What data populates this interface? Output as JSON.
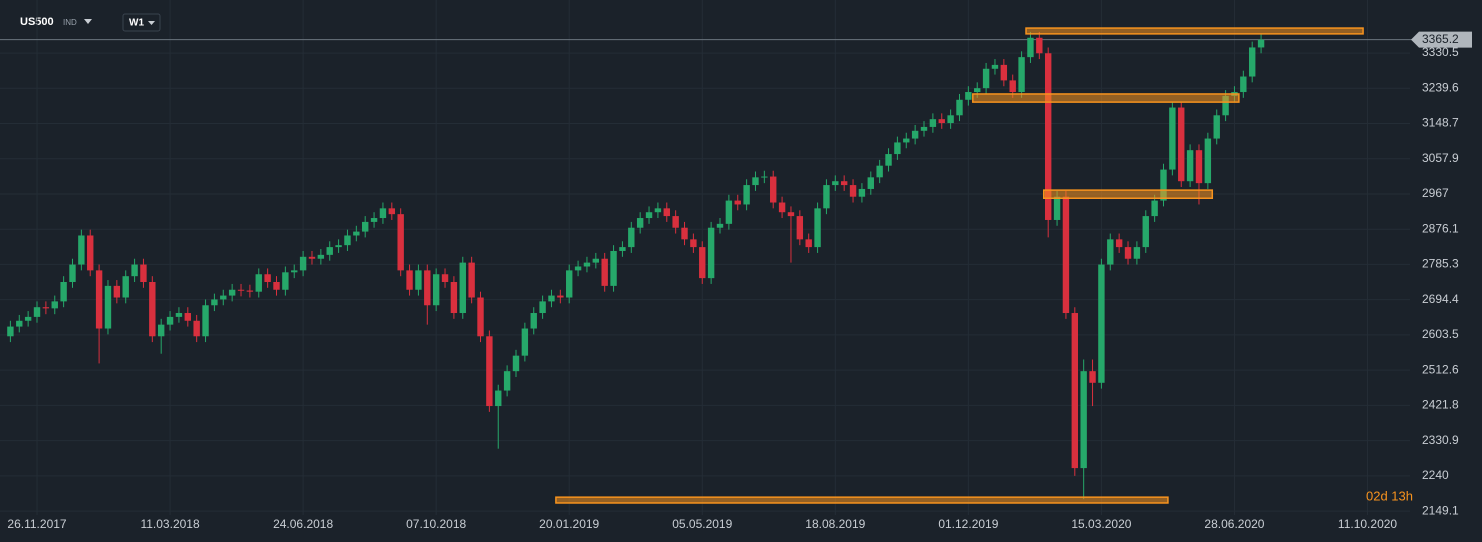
{
  "header": {
    "symbol": "US500",
    "instrument_type": "IND",
    "timeframe": "W1"
  },
  "chart_data": {
    "type": "candlestick",
    "categories": [
      null,
      null,
      null,
      "26.11.2017",
      null,
      null,
      null,
      null,
      null,
      null,
      null,
      null,
      null,
      null,
      null,
      null,
      null,
      null,
      "11.03.2018",
      null,
      null,
      null,
      null,
      null,
      null,
      null,
      null,
      null,
      null,
      null,
      null,
      null,
      null,
      "24.06.2018",
      null,
      null,
      null,
      null,
      null,
      null,
      null,
      null,
      null,
      null,
      null,
      null,
      null,
      null,
      "07.10.2018",
      null,
      null,
      null,
      null,
      null,
      null,
      null,
      null,
      null,
      null,
      null,
      null,
      null,
      null,
      "20.01.2019",
      null,
      null,
      null,
      null,
      null,
      null,
      null,
      null,
      null,
      null,
      null,
      null,
      null,
      null,
      "05.05.2019",
      null,
      null,
      null,
      null,
      null,
      null,
      null,
      null,
      null,
      null,
      null,
      null,
      null,
      null,
      "18.08.2019",
      null,
      null,
      null,
      null,
      null,
      null,
      null,
      null,
      null,
      null,
      null,
      null,
      null,
      null,
      "01.12.2019",
      null,
      null,
      null,
      null,
      null,
      null,
      null,
      null,
      null,
      null,
      null,
      null,
      null,
      null,
      "15.03.2020",
      null,
      null,
      null,
      null,
      null,
      null,
      null,
      null,
      null,
      null,
      null,
      null,
      null,
      null,
      "28.06.2020",
      null,
      null,
      null,
      null,
      null,
      null,
      null,
      null,
      null,
      null,
      null,
      null,
      null,
      null,
      "11.10.2020",
      null,
      null
    ],
    "open": [
      2600,
      2625,
      2640,
      2650,
      2675,
      2672,
      2690,
      2740,
      2785,
      2860,
      2770,
      2620,
      2730,
      2700,
      2755,
      2785,
      2740,
      2600,
      2630,
      2650,
      2660,
      2640,
      2600,
      2680,
      2695,
      2705,
      2720,
      2718,
      2715,
      2760,
      2740,
      2720,
      2765,
      2770,
      2805,
      2800,
      2810,
      2830,
      2835,
      2860,
      2870,
      2895,
      2905,
      2930,
      2915,
      2770,
      2720,
      2770,
      2680,
      2760,
      2740,
      2660,
      2790,
      2700,
      2600,
      2420,
      2460,
      2510,
      2550,
      2620,
      2660,
      2690,
      2705,
      2700,
      2770,
      2780,
      2790,
      2800,
      2730,
      2820,
      2830,
      2880,
      2905,
      2920,
      2930,
      2910,
      2880,
      2850,
      2830,
      2750,
      2880,
      2890,
      2950,
      2940,
      2990,
      3010,
      3012,
      2945,
      2920,
      2910,
      2850,
      2830,
      2930,
      2990,
      3000,
      2990,
      2960,
      2980,
      3010,
      3040,
      3070,
      3100,
      3110,
      3130,
      3140,
      3160,
      3150,
      3170,
      3210,
      3230,
      3240,
      3290,
      3300,
      3260,
      3230,
      3320,
      3370,
      3330,
      2900,
      2960,
      2660,
      2260,
      2510,
      2480,
      2785,
      2850,
      2830,
      2800,
      2830,
      2910,
      2950,
      3030,
      3190,
      3000,
      3080,
      2995,
      3110,
      3170,
      3220,
      3230,
      3270,
      3345,
      null,
      null,
      null,
      null,
      null,
      null,
      null,
      null,
      null,
      null,
      null,
      null,
      null,
      null
    ],
    "high": [
      2640,
      2655,
      2665,
      2690,
      2690,
      2705,
      2755,
      2800,
      2875,
      2875,
      2785,
      2745,
      2745,
      2770,
      2800,
      2800,
      2755,
      2645,
      2665,
      2675,
      2675,
      2655,
      2695,
      2710,
      2720,
      2735,
      2735,
      2733,
      2775,
      2775,
      2755,
      2780,
      2785,
      2820,
      2820,
      2825,
      2845,
      2850,
      2875,
      2885,
      2910,
      2920,
      2945,
      2945,
      2930,
      2785,
      2785,
      2785,
      2775,
      2775,
      2755,
      2805,
      2805,
      2715,
      2615,
      2475,
      2525,
      2565,
      2635,
      2675,
      2705,
      2720,
      2720,
      2785,
      2795,
      2805,
      2815,
      2815,
      2835,
      2845,
      2895,
      2920,
      2935,
      2945,
      2945,
      2925,
      2895,
      2865,
      2845,
      2895,
      2905,
      2965,
      2965,
      3005,
      3025,
      3027,
      3027,
      2960,
      2935,
      2925,
      2865,
      2945,
      3005,
      3015,
      3015,
      3005,
      2995,
      3025,
      3055,
      3085,
      3115,
      3125,
      3145,
      3155,
      3175,
      3175,
      3185,
      3225,
      3245,
      3255,
      3305,
      3315,
      3315,
      3275,
      3335,
      3385,
      3385,
      3345,
      2975,
      2975,
      2675,
      2540,
      2540,
      2800,
      2865,
      2865,
      2845,
      2845,
      2925,
      2965,
      3045,
      3205,
      3205,
      3095,
      3095,
      3125,
      3185,
      3235,
      3245,
      3285,
      3360,
      3380,
      null,
      null,
      null,
      null,
      null,
      null,
      null,
      null,
      null,
      null,
      null,
      null,
      null,
      null
    ],
    "low": [
      2585,
      2610,
      2625,
      2635,
      2657,
      2657,
      2675,
      2725,
      2770,
      2755,
      2530,
      2605,
      2685,
      2685,
      2740,
      2725,
      2585,
      2555,
      2615,
      2635,
      2625,
      2585,
      2585,
      2665,
      2680,
      2690,
      2703,
      2700,
      2700,
      2725,
      2705,
      2705,
      2750,
      2755,
      2785,
      2785,
      2795,
      2815,
      2820,
      2845,
      2855,
      2880,
      2890,
      2900,
      2755,
      2705,
      2705,
      2630,
      2665,
      2725,
      2645,
      2645,
      2685,
      2585,
      2405,
      2310,
      2445,
      2495,
      2535,
      2605,
      2645,
      2675,
      2685,
      2685,
      2755,
      2765,
      2775,
      2715,
      2715,
      2805,
      2815,
      2865,
      2890,
      2905,
      2895,
      2865,
      2835,
      2815,
      2735,
      2735,
      2865,
      2875,
      2925,
      2925,
      2975,
      2995,
      2930,
      2905,
      2790,
      2835,
      2815,
      2815,
      2915,
      2975,
      2975,
      2945,
      2945,
      2965,
      2995,
      3025,
      3055,
      3085,
      3095,
      3115,
      3125,
      3135,
      3135,
      3155,
      3195,
      3215,
      3225,
      3275,
      3245,
      3215,
      3215,
      3305,
      3315,
      2855,
      2885,
      2645,
      2240,
      2180,
      2420,
      2465,
      2770,
      2815,
      2785,
      2785,
      2815,
      2895,
      2935,
      3015,
      2985,
      2985,
      2940,
      2980,
      3095,
      3155,
      3205,
      3215,
      3255,
      3330,
      null,
      null,
      null,
      null,
      null,
      null,
      null,
      null,
      null,
      null,
      null,
      null,
      null,
      null
    ],
    "close": [
      2625,
      2640,
      2650,
      2675,
      2672,
      2690,
      2740,
      2785,
      2860,
      2770,
      2620,
      2730,
      2700,
      2755,
      2785,
      2740,
      2600,
      2630,
      2650,
      2660,
      2640,
      2600,
      2680,
      2695,
      2705,
      2720,
      2718,
      2715,
      2760,
      2740,
      2720,
      2765,
      2770,
      2805,
      2800,
      2810,
      2830,
      2835,
      2860,
      2870,
      2895,
      2905,
      2930,
      2915,
      2770,
      2720,
      2770,
      2680,
      2760,
      2740,
      2660,
      2790,
      2700,
      2600,
      2420,
      2460,
      2510,
      2550,
      2620,
      2660,
      2690,
      2705,
      2700,
      2770,
      2780,
      2790,
      2800,
      2730,
      2820,
      2830,
      2880,
      2905,
      2920,
      2930,
      2910,
      2880,
      2850,
      2830,
      2750,
      2880,
      2890,
      2950,
      2940,
      2990,
      3010,
      3012,
      2945,
      2920,
      2910,
      2850,
      2830,
      2930,
      2990,
      3000,
      2990,
      2960,
      2980,
      3010,
      3040,
      3070,
      3100,
      3110,
      3130,
      3140,
      3160,
      3150,
      3170,
      3210,
      3230,
      3240,
      3290,
      3300,
      3260,
      3230,
      3320,
      3370,
      3330,
      2900,
      2960,
      2660,
      2260,
      2510,
      2480,
      2785,
      2850,
      2830,
      2800,
      2830,
      2910,
      2950,
      3030,
      3190,
      3000,
      3080,
      2995,
      3110,
      3170,
      3220,
      3230,
      3270,
      3345,
      3365,
      null,
      null,
      null,
      null,
      null,
      null,
      null,
      null,
      null,
      null,
      null,
      null,
      null,
      null
    ],
    "up_color": "#26a86a",
    "down_color": "#d9303e",
    "ylim": [
      2139,
      3390
    ],
    "yticks": [
      2149.1,
      2240.0,
      2330.9,
      2421.8,
      2512.6,
      2603.5,
      2694.4,
      2785.3,
      2876.1,
      2967.0,
      3057.9,
      3148.7,
      3239.6,
      3330.5
    ],
    "current_price": 3365.2,
    "grid": true,
    "zones_color": "#f7931e",
    "zones": [
      {
        "low": 3380,
        "high": 3395,
        "start": 114.5,
        "end": 152.5
      },
      {
        "low": 3204,
        "high": 3225,
        "start": 108.5,
        "end": 138.5
      },
      {
        "low": 2956,
        "high": 2977,
        "start": 116.5,
        "end": 135.5
      },
      {
        "low": 2170,
        "high": 2185,
        "start": 61.5,
        "end": 130.5
      }
    ],
    "countdown": "02d 13h"
  }
}
